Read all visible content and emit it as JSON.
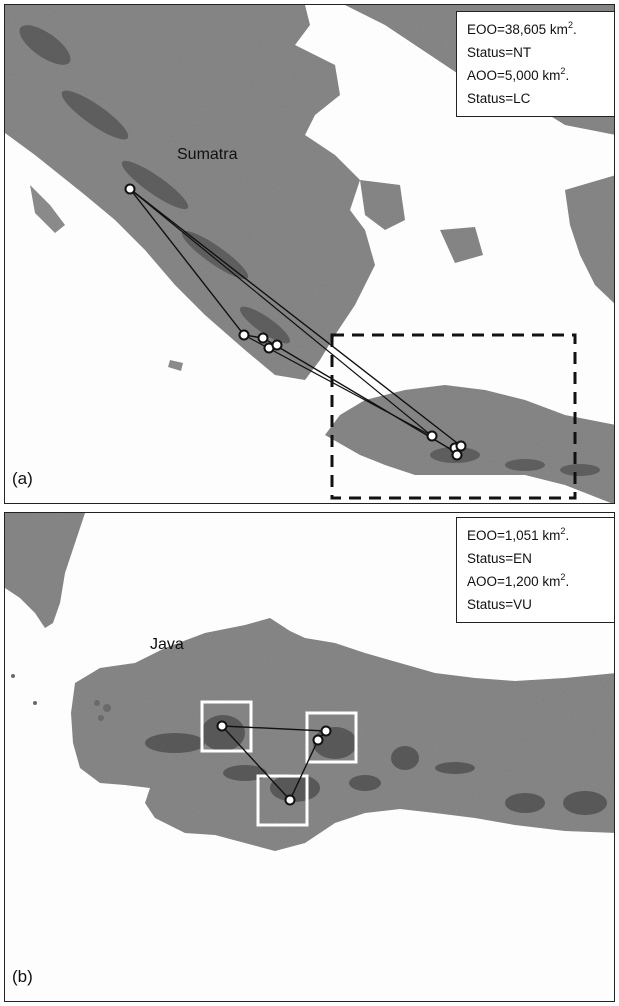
{
  "panels": [
    {
      "letter": "(a)",
      "place": "Sumatra",
      "eoo_prefix": "EOO=38,605 km",
      "eoo_status": "Status=NT",
      "aoo_prefix": "AOO=5,000 km",
      "aoo_status": "Status=LC"
    },
    {
      "letter": "(b)",
      "place": "Java",
      "eoo_prefix": "EOO=1,051 km",
      "eoo_status": "Status=EN",
      "aoo_prefix": "AOO=1,200 km",
      "aoo_status": "Status=VU"
    }
  ],
  "unit_exponent": "2",
  "unit_suffix": ".",
  "colors": {
    "land": "#8a8a8a",
    "land_dark": "#5a5a5a",
    "sea": "#ffffff",
    "hull_line": "#111111",
    "aoo_grid": "#ffffff"
  }
}
